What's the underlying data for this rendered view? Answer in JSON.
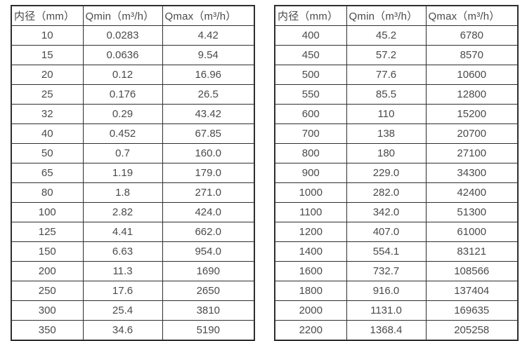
{
  "colors": {
    "background": "#ffffff",
    "border": "#2e2e2e",
    "text": "#4a4a4a"
  },
  "chart_data": [
    {
      "type": "table",
      "title": "",
      "columns": [
        "内径（mm）",
        "Qmin（m³/h）",
        "Qmax（m³/h）"
      ],
      "rows": [
        [
          "10",
          "0.0283",
          "4.42"
        ],
        [
          "15",
          "0.0636",
          "9.54"
        ],
        [
          "20",
          "0.12",
          "16.96"
        ],
        [
          "25",
          "0.176",
          "26.5"
        ],
        [
          "32",
          "0.29",
          "43.42"
        ],
        [
          "40",
          "0.452",
          "67.85"
        ],
        [
          "50",
          "0.7",
          "160.0"
        ],
        [
          "65",
          "1.19",
          "179.0"
        ],
        [
          "80",
          "1.8",
          "271.0"
        ],
        [
          "100",
          "2.82",
          "424.0"
        ],
        [
          "125",
          "4.41",
          "662.0"
        ],
        [
          "150",
          "6.63",
          "954.0"
        ],
        [
          "200",
          "11.3",
          "1690"
        ],
        [
          "250",
          "17.6",
          "2650"
        ],
        [
          "300",
          "25.4",
          "3810"
        ],
        [
          "350",
          "34.6",
          "5190"
        ]
      ]
    },
    {
      "type": "table",
      "title": "",
      "columns": [
        "内径（mm）",
        "Qmin（m³/h）",
        "Qmax（m³/h）"
      ],
      "rows": [
        [
          "400",
          "45.2",
          "6780"
        ],
        [
          "450",
          "57.2",
          "8570"
        ],
        [
          "500",
          "77.6",
          "10600"
        ],
        [
          "550",
          "85.5",
          "12800"
        ],
        [
          "600",
          "110",
          "15200"
        ],
        [
          "700",
          "138",
          "20700"
        ],
        [
          "800",
          "180",
          "27100"
        ],
        [
          "900",
          "229.0",
          "34300"
        ],
        [
          "1000",
          "282.0",
          "42400"
        ],
        [
          "1100",
          "342.0",
          "51300"
        ],
        [
          "1200",
          "407.0",
          "61000"
        ],
        [
          "1400",
          "554.1",
          "83121"
        ],
        [
          "1600",
          "732.7",
          "108566"
        ],
        [
          "1800",
          "916.0",
          "137404"
        ],
        [
          "2000",
          "1131.0",
          "169635"
        ],
        [
          "2200",
          "1368.4",
          "205258"
        ]
      ]
    }
  ]
}
